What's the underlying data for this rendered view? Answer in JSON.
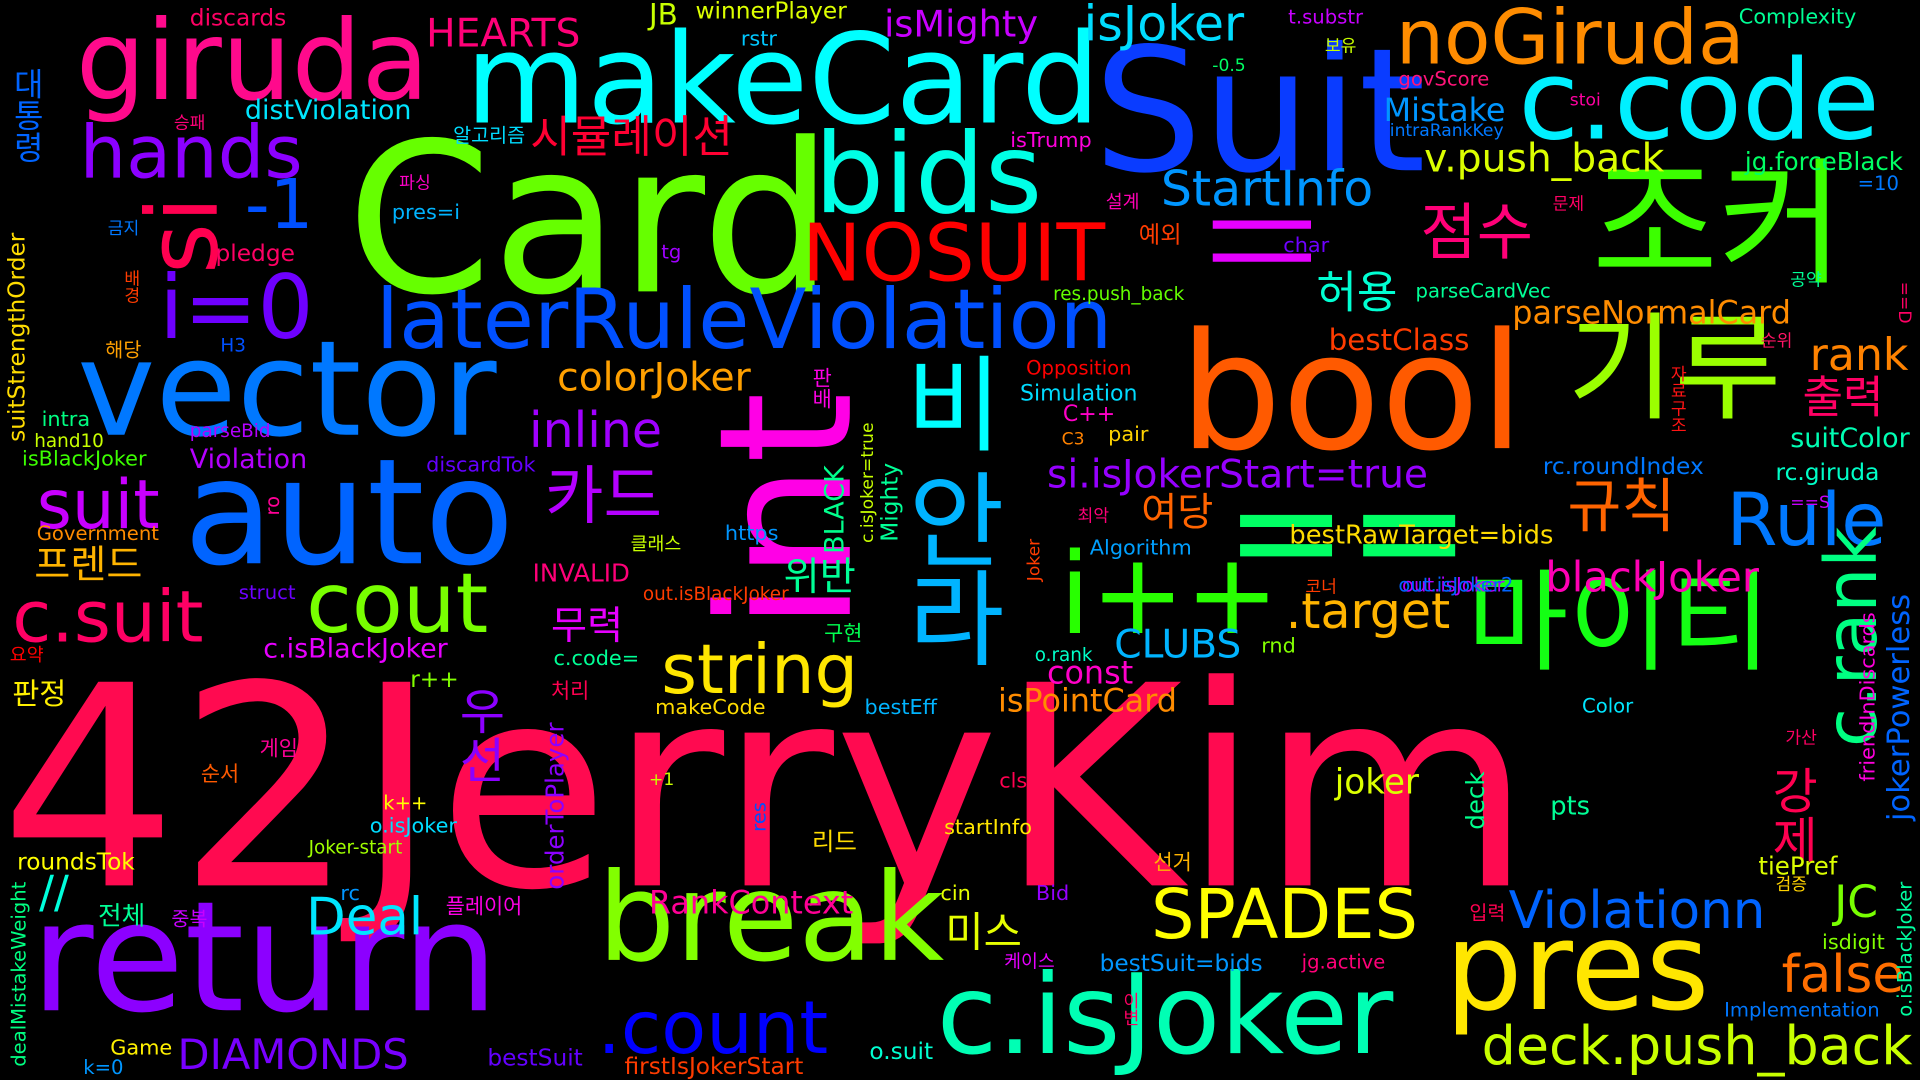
{
  "words": [
    {
      "text": "42JerryKim",
      "color": "#ff0a50"
    },
    {
      "text": "Card",
      "color": "#66ff00"
    },
    {
      "text": "Suit",
      "color": "#0a3cff"
    },
    {
      "text": "bool",
      "color": "#ff5a00"
    },
    {
      "text": "return",
      "color": "#8c00ff"
    },
    {
      "text": "int",
      "color": "#ff00e6"
    },
    {
      "text": "auto",
      "color": "#0064ff"
    },
    {
      "text": "vector",
      "color": "#0078ff"
    },
    {
      "text": "makeCard",
      "color": "#00ffff"
    },
    {
      "text": "조커",
      "color": "#3cff00"
    },
    {
      "text": "c.code",
      "color": "#00f0ff"
    },
    {
      "text": "break",
      "color": "#82ff00"
    },
    {
      "text": "pres",
      "color": "#ffe600"
    },
    {
      "text": "c.isJoker",
      "color": "#00ffb4"
    },
    {
      "text": "giruda",
      "color": "#ff0a8c"
    },
    {
      "text": "bids",
      "color": "#00ffe6"
    },
    {
      "text": "==",
      "color": "#00ff64"
    },
    {
      "text": "i++",
      "color": "#28ff00"
    },
    {
      "text": "기루",
      "color": "#9bff00"
    },
    {
      "text": "마이티",
      "color": "#14ff14"
    },
    {
      "text": "noGiruda",
      "color": "#ff8c00"
    },
    {
      "text": "laterRuleViolation",
      "color": "#0050ff"
    },
    {
      "text": "i=0",
      "color": "#6e00ff"
    },
    {
      "text": "hands",
      "color": "#8c00ff"
    },
    {
      "text": "si",
      "color": "#ff0050"
    },
    {
      "text": "NOSUIT",
      "color": "#ff0000"
    },
    {
      "text": "||",
      "color": "#e600ff"
    },
    {
      "text": "비",
      "color": "#00ffff"
    },
    {
      "text": "안",
      "color": "#00b4ff"
    },
    {
      "text": "라",
      "color": "#00b4ff"
    },
    {
      "text": "cout",
      "color": "#78ff00"
    },
    {
      "text": "string",
      "color": "#ffe600"
    },
    {
      "text": "SPADES",
      "color": "#ffff00"
    },
    {
      "text": "Violationn",
      "color": "#0064ff"
    },
    {
      "text": "deck.push_back",
      "color": "#c8ff00"
    },
    {
      "text": ".count",
      "color": "#0000ff"
    },
    {
      "text": "c.suit",
      "color": "#ff0064"
    },
    {
      "text": "suit",
      "color": "#c800ff"
    },
    {
      "text": "Rule",
      "color": "#0078ff"
    },
    {
      "text": "c.rank",
      "color": "#00ff82"
    },
    {
      "text": "점수",
      "color": "#ff0078"
    },
    {
      "text": "규칙",
      "color": "#ff6400"
    },
    {
      "text": "카드",
      "color": "#b400ff"
    },
    {
      "text": "-1",
      "color": "#0050ff"
    },
    {
      "text": "StartInfo",
      "color": "#0096ff"
    },
    {
      "text": "v.push_back",
      "color": "#dcff00"
    },
    {
      "text": "isJoker",
      "color": "#00dcff"
    },
    {
      "text": "Deal",
      "color": "#00e6ff"
    },
    {
      "text": "false",
      "color": "#ff6e00"
    },
    {
      "text": "DIAMONDS",
      "color": "#7800ff"
    },
    {
      "text": "blackJoker",
      "color": "#ff00b4"
    },
    {
      "text": ".target",
      "color": "#ffb400"
    },
    {
      "text": "colorJoker",
      "color": "#ffa000"
    },
    {
      "text": "inline",
      "color": "#a000ff"
    },
    {
      "text": "si.isJokerStart=true",
      "color": "#9600ff"
    },
    {
      "text": "parseNormalCard",
      "color": "#ff8c00"
    },
    {
      "text": "rank",
      "color": "#ff8200"
    },
    {
      "text": "출력",
      "color": "#ff0064"
    },
    {
      "text": "허용",
      "color": "#00ffd2"
    },
    {
      "text": "시뮬레이션",
      "color": "#ff0032"
    },
    {
      "text": "HEARTS",
      "color": "#ff0078"
    },
    {
      "text": "isMighty",
      "color": "#c800ff"
    },
    {
      "text": "JB",
      "color": "#c8ff00"
    },
    {
      "text": "winnerPlayer",
      "color": "#dcff00"
    },
    {
      "text": "discards",
      "color": "#ff0064"
    },
    {
      "text": "t.substr",
      "color": "#c800ff"
    },
    {
      "text": "Complexity",
      "color": "#00ff96"
    },
    {
      "text": "대통령",
      "color": "#0064ff"
    },
    {
      "text": "우선",
      "color": "#8c00ff"
    },
    {
      "text": "강제",
      "color": "#ff0050"
    },
    {
      "text": "미스",
      "color": "#e6ff00"
    },
    {
      "text": "여당",
      "color": "#ff6400"
    },
    {
      "text": "무력",
      "color": "#e600ff"
    },
    {
      "text": "위반",
      "color": "#00ff96"
    },
    {
      "text": "프렌드",
      "color": "#ffb400"
    },
    {
      "text": "판정",
      "color": "#fff000"
    },
    {
      "text": "CLUBS",
      "color": "#00b4ff"
    },
    {
      "text": "isPointCard",
      "color": "#ff8c00"
    },
    {
      "text": "const",
      "color": "#ff00c8"
    },
    {
      "text": "joker",
      "color": "#dcff00"
    },
    {
      "text": "RankContext",
      "color": "#ff0096"
    },
    {
      "text": "JC",
      "color": "#78ff00"
    },
    {
      "text": "Mistake",
      "color": "#0096ff"
    },
    {
      "text": "jg.forceBlack",
      "color": "#00ff64"
    },
    {
      "text": "bestClass",
      "color": "#ff3c00"
    },
    {
      "text": "suitColor",
      "color": "#00ffb4"
    },
    {
      "text": "rc.roundIndex",
      "color": "#0078ff"
    },
    {
      "text": "rc.giruda",
      "color": "#00ffc8"
    },
    {
      "text": "bestRawTarget=bids",
      "color": "#ffdc00"
    },
    {
      "text": "out.isJoker",
      "color": "#b400ff"
    },
    {
      "text": "jokerPowerless",
      "color": "#0064ff"
    },
    {
      "text": "friendInDiscards",
      "color": "#ff00dc"
    },
    {
      "text": "tiePref",
      "color": "#dcff00"
    },
    {
      "text": "isdigit",
      "color": "#82ff00"
    },
    {
      "text": "Implementation",
      "color": "#0078ff"
    },
    {
      "text": "o.isBlackJoker",
      "color": "#00ffa0"
    },
    {
      "text": "pts",
      "color": "#00ff96"
    },
    {
      "text": "deck",
      "color": "#00ff8c"
    },
    {
      "text": "Color",
      "color": "#00e6ff"
    },
    {
      "text": "o.suit",
      "color": "#00ffd2"
    },
    {
      "text": "bestSuit=bids",
      "color": "#0096ff"
    },
    {
      "text": "jg.active",
      "color": "#ff0078"
    },
    {
      "text": "firstIsJokerStart",
      "color": "#ff3c00"
    },
    {
      "text": "Game",
      "color": "#fff000"
    },
    {
      "text": "k=0",
      "color": "#0096ff"
    },
    {
      "text": "bestSuit",
      "color": "#6400ff"
    },
    {
      "text": "dealMistakeWeight",
      "color": "#00ff82"
    },
    {
      "text": "roundsTok",
      "color": "#ffff00"
    },
    {
      "text": "//",
      "color": "#00ffdc"
    },
    {
      "text": "전체",
      "color": "#00ff96"
    },
    {
      "text": "중복",
      "color": "#c800ff"
    },
    {
      "text": "rc",
      "color": "#0096ff"
    },
    {
      "text": "Joker-start",
      "color": "#a0ff00"
    },
    {
      "text": "o.isJoker",
      "color": "#00dcff"
    },
    {
      "text": "k++",
      "color": "#ffff00"
    },
    {
      "text": "순서",
      "color": "#ff5a00"
    },
    {
      "text": "게임",
      "color": "#ff0096"
    },
    {
      "text": "처리",
      "color": "#ff0050"
    },
    {
      "text": "c.code=",
      "color": "#00ff96"
    },
    {
      "text": "r++",
      "color": "#82ff00"
    },
    {
      "text": "c.isBlackJoker",
      "color": "#e600ff"
    },
    {
      "text": "요약",
      "color": "#ff0000"
    },
    {
      "text": "struct",
      "color": "#6e00ff"
    },
    {
      "text": "Government",
      "color": "#ff8c00"
    },
    {
      "text": "ro",
      "color": "#ff0096"
    },
    {
      "text": "isBlackJoker",
      "color": "#3cff00"
    },
    {
      "text": "hand10",
      "color": "#c8ff00"
    },
    {
      "text": "intra",
      "color": "#00ff82"
    },
    {
      "text": "suitStrengthOrder",
      "color": "#ffdc00"
    },
    {
      "text": "Violation",
      "color": "#b400ff"
    },
    {
      "text": "discardTok",
      "color": "#6400ff"
    },
    {
      "text": "parseBid",
      "color": "#b400ff"
    },
    {
      "text": "해당",
      "color": "#ffa000"
    },
    {
      "text": "H3",
      "color": "#0050ff"
    },
    {
      "text": "배경",
      "color": "#ff3c00"
    },
    {
      "text": "pledge",
      "color": "#ff0064"
    },
    {
      "text": "금지",
      "color": "#0078ff"
    },
    {
      "text": "tg",
      "color": "#a000ff"
    },
    {
      "text": "파싱",
      "color": "#ff00c8"
    },
    {
      "text": "pres=i",
      "color": "#00b4ff"
    },
    {
      "text": "승패",
      "color": "#ff0078"
    },
    {
      "text": "distViolation",
      "color": "#00e6ff"
    },
    {
      "text": "알고리즘",
      "color": "#00dcff"
    },
    {
      "text": "rstr",
      "color": "#00c8ff"
    },
    {
      "text": "isTrump",
      "color": "#ff00dc"
    },
    {
      "text": "설계",
      "color": "#ff00b4"
    },
    {
      "text": "예외",
      "color": "#ff3c00"
    },
    {
      "text": "char",
      "color": "#6e00ff"
    },
    {
      "text": "res.push_back",
      "color": "#64ff00"
    },
    {
      "text": "Opposition",
      "color": "#ff0000"
    },
    {
      "text": "Simulation",
      "color": "#00dcff"
    },
    {
      "text": "C++",
      "color": "#ff00c8"
    },
    {
      "text": "C3",
      "color": "#ff8200"
    },
    {
      "text": "pair",
      "color": "#ffd200"
    },
    {
      "text": "판배",
      "color": "#ff00e6"
    },
    {
      "text": "BLACK",
      "color": "#00ff8c"
    },
    {
      "text": "Mighty",
      "color": "#00ff96"
    },
    {
      "text": "c.isJoker=true",
      "color": "#c8ff00"
    },
    {
      "text": "https",
      "color": "#0096ff"
    },
    {
      "text": "Algorithm",
      "color": "#00a0ff"
    },
    {
      "text": "클래스",
      "color": "#c8ff00"
    },
    {
      "text": "최악",
      "color": "#ff0078"
    },
    {
      "text": "INVALID",
      "color": "#ff0078"
    },
    {
      "text": "out.isBlackJoker",
      "color": "#ff3c00"
    },
    {
      "text": "Joker",
      "color": "#ff3c00"
    },
    {
      "text": "코너",
      "color": "#ff3c00"
    },
    {
      "text": "out.isJoker2",
      "color": "#0064ff"
    },
    {
      "text": "rnd",
      "color": "#82ff00"
    },
    {
      "text": "o.rank",
      "color": "#00ffc8"
    },
    {
      "text": "구현",
      "color": "#00ff50"
    },
    {
      "text": "orderToPlayer",
      "color": "#8c00ff"
    },
    {
      "text": "bestEff",
      "color": "#00b4ff"
    },
    {
      "text": "makeCode",
      "color": "#ffdc00"
    },
    {
      "text": "+1",
      "color": "#c8ff00"
    },
    {
      "text": "res",
      "color": "#0050ff"
    },
    {
      "text": "cls",
      "color": "#ff0050"
    },
    {
      "text": "리드",
      "color": "#ffdc00"
    },
    {
      "text": "startInfo",
      "color": "#ffe600"
    },
    {
      "text": "선거",
      "color": "#ffb400"
    },
    {
      "text": "cin",
      "color": "#e6ff00"
    },
    {
      "text": "Bid",
      "color": "#9600ff"
    },
    {
      "text": "플레이어",
      "color": "#ff00e6"
    },
    {
      "text": "케이스",
      "color": "#e600ff"
    },
    {
      "text": "이변",
      "color": "#ff0064"
    },
    {
      "text": "입력",
      "color": "#ff0050"
    },
    {
      "text": "검증",
      "color": "#ffd200"
    },
    {
      "text": "가산",
      "color": "#ff0064"
    },
    {
      "text": "parseCardVec",
      "color": "#00ff96"
    },
    {
      "text": "공약",
      "color": "#00ff96"
    },
    {
      "text": "순위",
      "color": "#ff1464"
    },
    {
      "text": "자료구조",
      "color": "#ff1414"
    },
    {
      "text": "==D",
      "color": "#ff0064"
    },
    {
      "text": "==S",
      "color": "#c800ff"
    },
    {
      "text": "=10",
      "color": "#0078ff"
    },
    {
      "text": "문제",
      "color": "#ff0064"
    },
    {
      "text": "stoi",
      "color": "#ff00a0"
    },
    {
      "text": "govScore",
      "color": "#ff1478"
    },
    {
      "text": "intraRankKey",
      "color": "#0078ff"
    },
    {
      "text": "-0.5",
      "color": "#00ff64"
    },
    {
      "text": "보유",
      "color": "#c8ff00"
    }
  ]
}
